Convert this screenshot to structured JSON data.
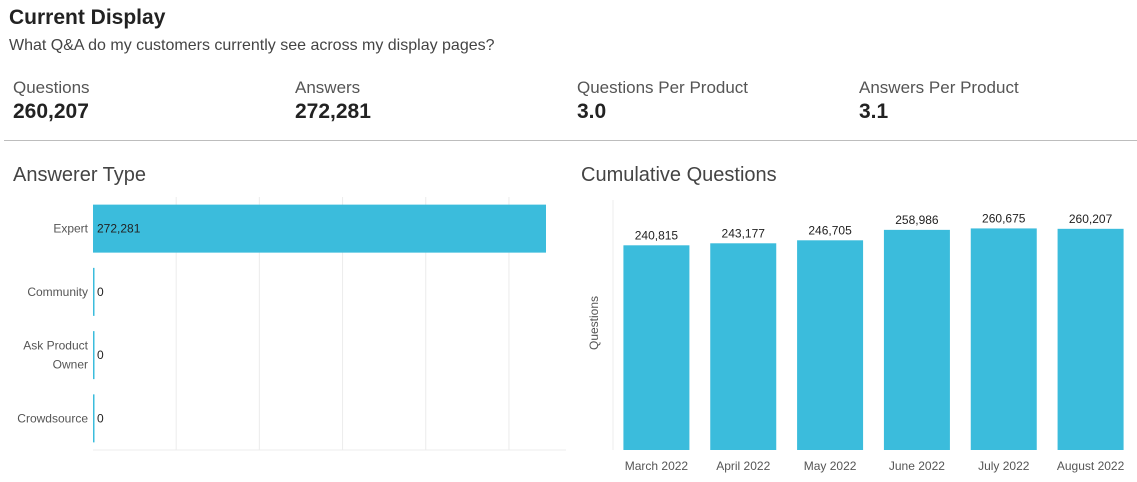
{
  "header": {
    "title": "Current Display",
    "subtitle": "What Q&A do my customers currently see across my display pages?"
  },
  "kpis": [
    {
      "label": "Questions",
      "value": "260,207"
    },
    {
      "label": "Answers",
      "value": "272,281"
    },
    {
      "label": "Questions Per Product",
      "value": "3.0"
    },
    {
      "label": "Answers Per Product",
      "value": "3.1"
    }
  ],
  "colors": {
    "bar": "#3bbcdc",
    "grid": "#ececec"
  },
  "chart_data": [
    {
      "type": "bar",
      "orientation": "horizontal",
      "title": "Answerer Type",
      "categories": [
        "Expert",
        "Community",
        "Ask Product Owner",
        "Crowdsource"
      ],
      "category_lines": [
        [
          "Expert"
        ],
        [
          "Community"
        ],
        [
          "Ask Product",
          "Owner"
        ],
        [
          "Crowdsource"
        ]
      ],
      "values": [
        272281,
        0,
        0,
        0
      ],
      "value_labels": [
        "272,281",
        "0",
        "0",
        "0"
      ],
      "xlim": [
        0,
        272281
      ],
      "grid": true
    },
    {
      "type": "bar",
      "orientation": "vertical",
      "title": "Cumulative Questions",
      "ylabel": "Questions",
      "categories": [
        "March 2022",
        "April 2022",
        "May 2022",
        "June 2022",
        "July 2022",
        "August 2022"
      ],
      "values": [
        240815,
        243177,
        246705,
        258986,
        260675,
        260207
      ],
      "value_labels": [
        "240,815",
        "243,177",
        "246,705",
        "258,986",
        "260,675",
        "260,207"
      ],
      "ylim": [
        0,
        275000
      ],
      "grid": false
    }
  ]
}
